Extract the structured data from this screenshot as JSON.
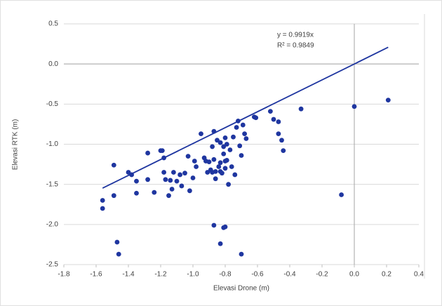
{
  "chart_data": {
    "type": "scatter",
    "x_label": "Elevasi Drone (m)",
    "y_label": "Elevasi RTK (m)",
    "series": [
      {
        "color": "#1f36a0",
        "x": [
          -1.56,
          -1.56,
          -1.49,
          -1.49,
          -1.47,
          -1.46,
          -1.4,
          -1.38,
          -1.35,
          -1.35,
          -1.28,
          -1.28,
          -1.24,
          -1.2,
          -1.19,
          -1.18,
          -1.18,
          -1.17,
          -1.15,
          -1.14,
          -1.13,
          -1.12,
          -1.1,
          -1.08,
          -1.07,
          -1.05,
          -1.03,
          -1.02,
          -1.0,
          -0.99,
          -0.98,
          -0.95,
          -0.93,
          -0.92,
          -0.91,
          -0.9,
          -0.89,
          -0.88,
          -0.87,
          -0.88,
          -0.87,
          -0.86,
          -0.86,
          -0.85,
          -0.84,
          -0.83,
          -0.83,
          -0.83,
          -0.82,
          -0.81,
          -0.81,
          -0.8,
          -0.8,
          -0.8,
          -0.79,
          -0.79,
          -0.78,
          -0.77,
          -0.76,
          -0.75,
          -0.74,
          -0.73,
          -0.72,
          -0.71,
          -0.7,
          -0.69,
          -0.68,
          -0.67,
          -0.62,
          -0.61,
          -0.52,
          -0.5,
          -0.47,
          -0.47,
          -0.45,
          -0.44,
          -0.33,
          0.0,
          -0.08,
          0.21,
          -0.87,
          -0.81,
          -0.8,
          -0.83,
          -0.7
        ],
        "values": [
          -1.7,
          -1.8,
          -1.26,
          -1.64,
          -2.22,
          -2.37,
          -1.35,
          -1.38,
          -1.46,
          -1.61,
          -1.11,
          -1.44,
          -1.6,
          -1.08,
          -1.08,
          -1.17,
          -1.35,
          -1.44,
          -1.64,
          -1.45,
          -1.56,
          -1.35,
          -1.46,
          -1.38,
          -1.52,
          -1.36,
          -1.15,
          -1.58,
          -1.42,
          -1.21,
          -1.28,
          -0.87,
          -1.17,
          -1.21,
          -1.35,
          -1.22,
          -1.32,
          -1.03,
          -0.84,
          -1.35,
          -1.19,
          -1.43,
          -1.34,
          -0.95,
          -1.28,
          -1.34,
          -0.98,
          -1.23,
          -1.36,
          -1.03,
          -1.12,
          -1.21,
          -0.92,
          -1.3,
          -1.0,
          -1.2,
          -1.5,
          -1.07,
          -1.28,
          -0.91,
          -1.38,
          -0.79,
          -0.71,
          -1.02,
          -1.14,
          -0.76,
          -0.87,
          -0.93,
          -0.66,
          -0.67,
          -0.59,
          -0.69,
          -0.72,
          -0.87,
          -0.95,
          -1.08,
          -0.56,
          -0.53,
          -1.63,
          -0.45,
          -2.01,
          -2.04,
          -2.03,
          -2.24,
          -2.37
        ]
      }
    ],
    "trendline": {
      "color": "#1f36a0",
      "slope": 0.9919,
      "xrange": [
        -1.56,
        0.21
      ],
      "label": "y = 0.9919x",
      "r2_label": "R² = 0.9849"
    },
    "xlim": [
      -1.8,
      0.4
    ],
    "xticks": [
      -1.8,
      -1.6,
      -1.4,
      -1.2,
      {
        "value": -1,
        "label": "-1.0"
      },
      -0.8,
      -0.6,
      -0.4,
      -0.2,
      {
        "value": 0,
        "label": "0.0"
      },
      0.2,
      0.4
    ],
    "ylim": [
      -2.5,
      0.5
    ],
    "yticks": [
      -2.5,
      {
        "value": -2,
        "label": "-2.0"
      },
      -1.5,
      {
        "value": -1,
        "label": "-1.0"
      },
      -0.5,
      {
        "value": 0,
        "label": "0.0"
      },
      0.5
    ],
    "grid": true
  }
}
